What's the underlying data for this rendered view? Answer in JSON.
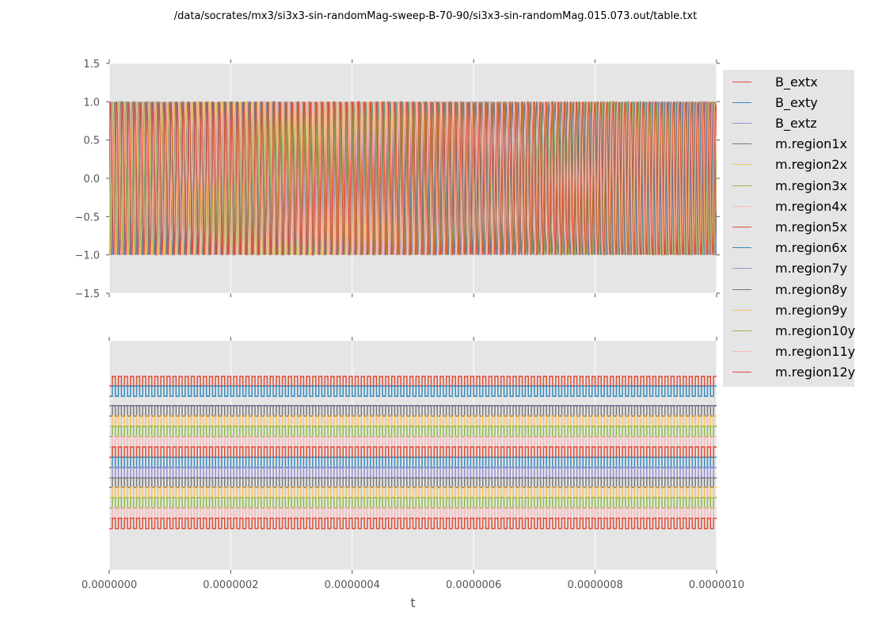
{
  "title": "/data/socrates/mx3/si3x3-sin-randomMag-sweep-B-70-90/si3x3-sin-randomMag.015.073.out/table.txt",
  "chart_data": [
    {
      "type": "line",
      "panel": "top",
      "xlim": [
        0,
        1e-06
      ],
      "ylim": [
        -1.5,
        1.5
      ],
      "yticks": [
        "1.5",
        "1.0",
        "0.5",
        "0.0",
        "−0.5",
        "−1.0",
        "−1.5"
      ],
      "ytick_values": [
        1.5,
        1.0,
        0.5,
        0.0,
        -0.5,
        -1.0,
        -1.5
      ],
      "signal": {
        "shape": "sinusoid",
        "amplitude": 1.0,
        "cycles_in_range": 100
      },
      "grid": true,
      "background": "#e5e5e5"
    },
    {
      "type": "line",
      "panel": "bottom",
      "xlim": [
        0,
        1e-06
      ],
      "xlabel": "t",
      "xticks": [
        "0.0000000",
        "0.0000002",
        "0.0000004",
        "0.0000006",
        "0.0000008",
        "0.0000010"
      ],
      "xtick_values": [
        0,
        2e-07,
        4e-07,
        6e-07,
        8e-07,
        1e-06
      ],
      "signal": {
        "shape": "square wave",
        "cycles_in_range": 100
      },
      "grid": true,
      "background": "#e5e5e5"
    }
  ],
  "legend": {
    "placement": "right",
    "series": [
      {
        "name": "B_extx",
        "color": "#e24a33"
      },
      {
        "name": "B_exty",
        "color": "#348abd"
      },
      {
        "name": "B_extz",
        "color": "#988ed5"
      },
      {
        "name": "m.region1x",
        "color": "#777777"
      },
      {
        "name": "m.region2x",
        "color": "#fbc15e"
      },
      {
        "name": "m.region3x",
        "color": "#8eba42"
      },
      {
        "name": "m.region4x",
        "color": "#ffb5b8"
      },
      {
        "name": "m.region5x",
        "color": "#e24a33"
      },
      {
        "name": "m.region6x",
        "color": "#348abd"
      },
      {
        "name": "m.region7y",
        "color": "#988ed5"
      },
      {
        "name": "m.region8y",
        "color": "#777777"
      },
      {
        "name": "m.region9y",
        "color": "#fbc15e"
      },
      {
        "name": "m.region10y",
        "color": "#8eba42"
      },
      {
        "name": "m.region11y",
        "color": "#ffb5b8"
      },
      {
        "name": "m.region12y",
        "color": "#e24a33"
      }
    ]
  }
}
